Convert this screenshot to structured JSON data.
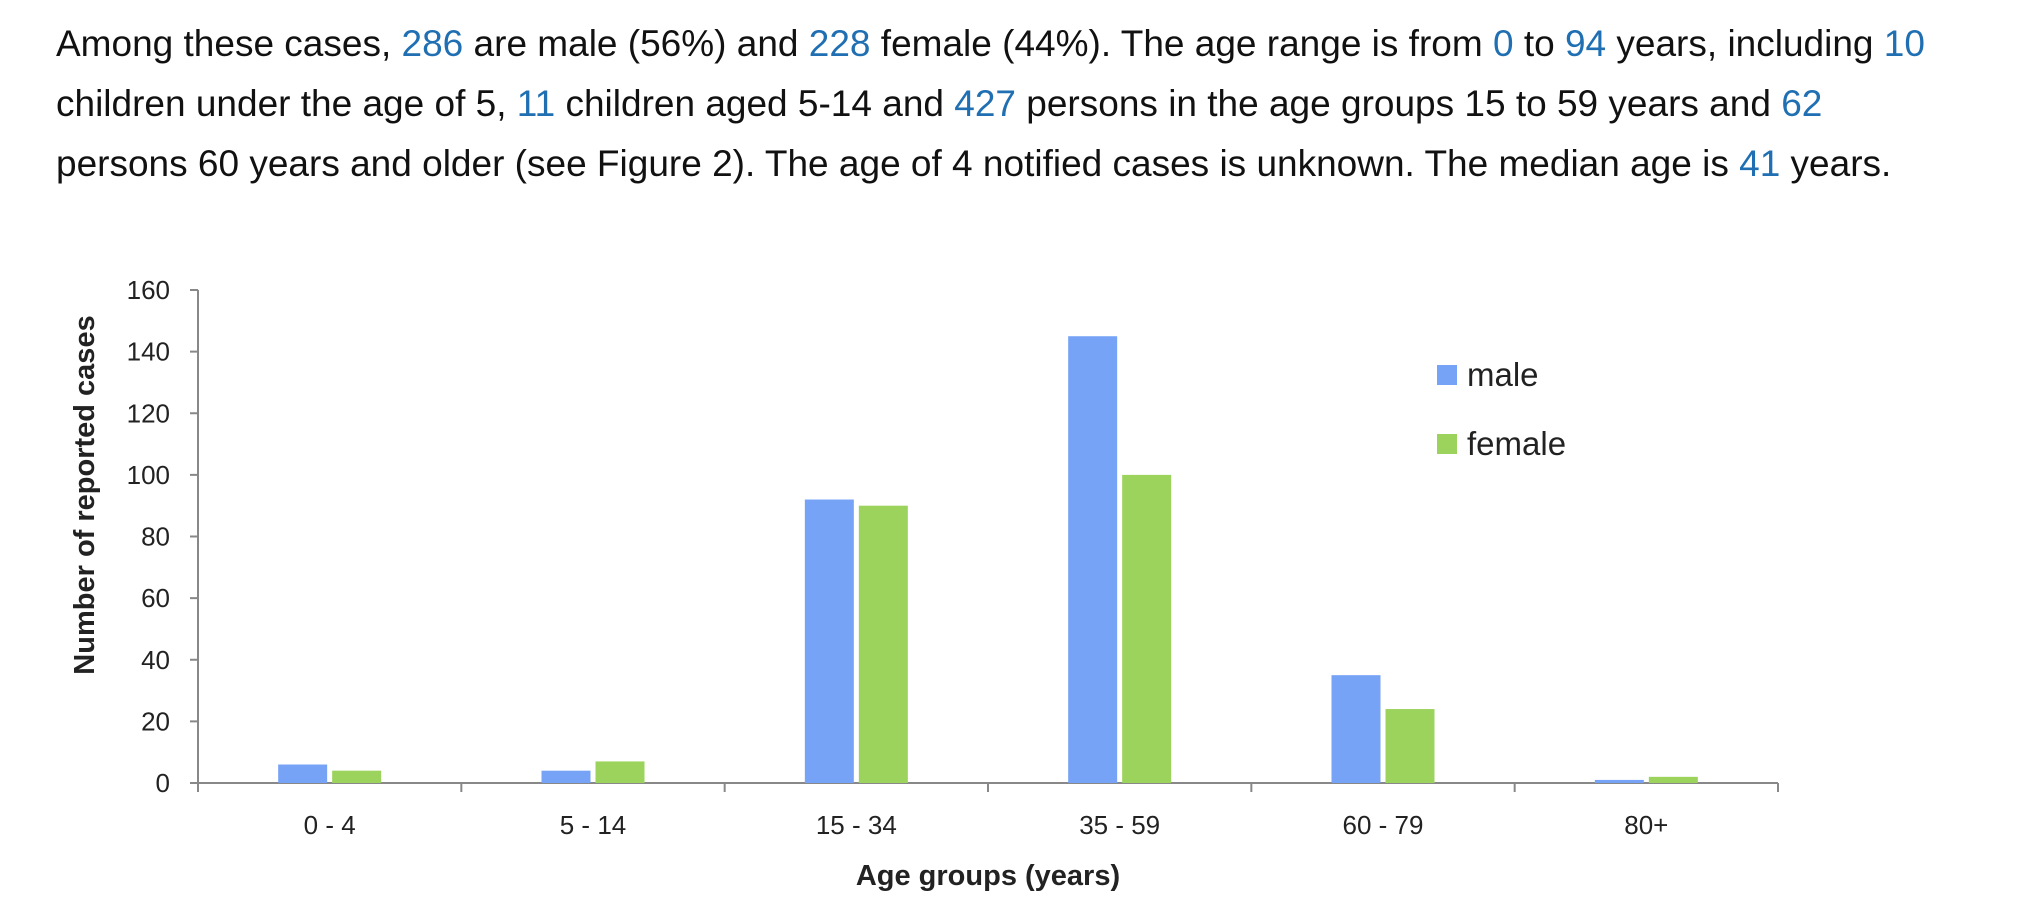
{
  "paragraph": {
    "lines": [
      [
        {
          "t": "Among these cases, "
        },
        {
          "t": "286",
          "hl": true
        },
        {
          "t": " are male (56%) and "
        },
        {
          "t": "228",
          "hl": true
        },
        {
          "t": " female (44%). The age range is from "
        },
        {
          "t": "0",
          "hl": true
        },
        {
          "t": " to "
        },
        {
          "t": "94",
          "hl": true
        },
        {
          "t": " years, including "
        },
        {
          "t": "10",
          "hl": true
        }
      ],
      [
        {
          "t": "children under the age of 5, "
        },
        {
          "t": "11",
          "hl": true
        },
        {
          "t": " children aged 5-14 and "
        },
        {
          "t": "427",
          "hl": true
        },
        {
          "t": " persons in the age groups 15 to 59 years and "
        },
        {
          "t": "62",
          "hl": true
        }
      ],
      [
        {
          "t": "persons 60 years and older (see Figure 2). The age of 4 notified cases is unknown. The median age is "
        },
        {
          "t": "41",
          "hl": true
        },
        {
          "t": " years."
        }
      ]
    ],
    "highlight_color": "#1f6fb2"
  },
  "chart_data": {
    "type": "bar",
    "categories": [
      "0 - 4",
      "5 - 14",
      "15 - 34",
      "35 - 59",
      "60 - 79",
      "80+"
    ],
    "series": [
      {
        "name": "male",
        "values": [
          6,
          4,
          92,
          145,
          35,
          1
        ],
        "color": "#77a3f7"
      },
      {
        "name": "female",
        "values": [
          4,
          7,
          90,
          100,
          24,
          2
        ],
        "color": "#9bd35c"
      }
    ],
    "yticks": [
      0,
      20,
      40,
      60,
      80,
      100,
      120,
      140,
      160
    ],
    "ylim": [
      0,
      160
    ],
    "xlabel": "Age groups (years)",
    "ylabel": "Number of reported cases",
    "legend_position": "top-right",
    "grid": false
  }
}
